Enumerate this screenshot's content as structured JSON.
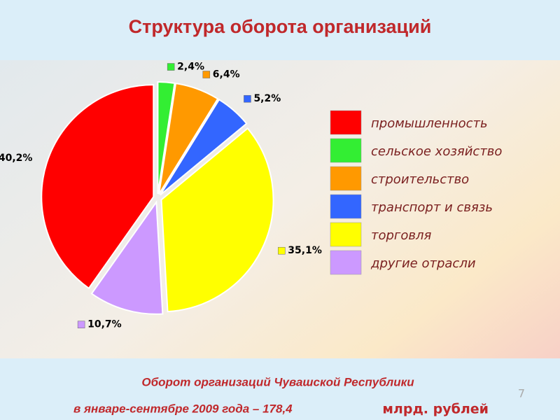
{
  "chart_data": {
    "type": "pie",
    "title": "Структура оборота организаций",
    "categories": [
      "промышленность",
      "сельское хозяйство",
      "строительство",
      "транспорт и связь",
      "торговля",
      "другие отрасли"
    ],
    "values": [
      40.2,
      2.4,
      6.4,
      5.2,
      35.1,
      10.7
    ],
    "value_labels": [
      "40,2%",
      "2,4%",
      "6,4%",
      "5,2%",
      "35,1%",
      "10,7%"
    ],
    "colors": [
      "#ff0000",
      "#33ee33",
      "#ff9900",
      "#3366ff",
      "#ffff00",
      "#cc99ff"
    ],
    "legend": "right",
    "footer": [
      "Оборот организаций Чувашской Республики",
      "в январе-сентябре 2009 года – 178,4",
      "млрд. рублей"
    ],
    "page_number": "7"
  }
}
